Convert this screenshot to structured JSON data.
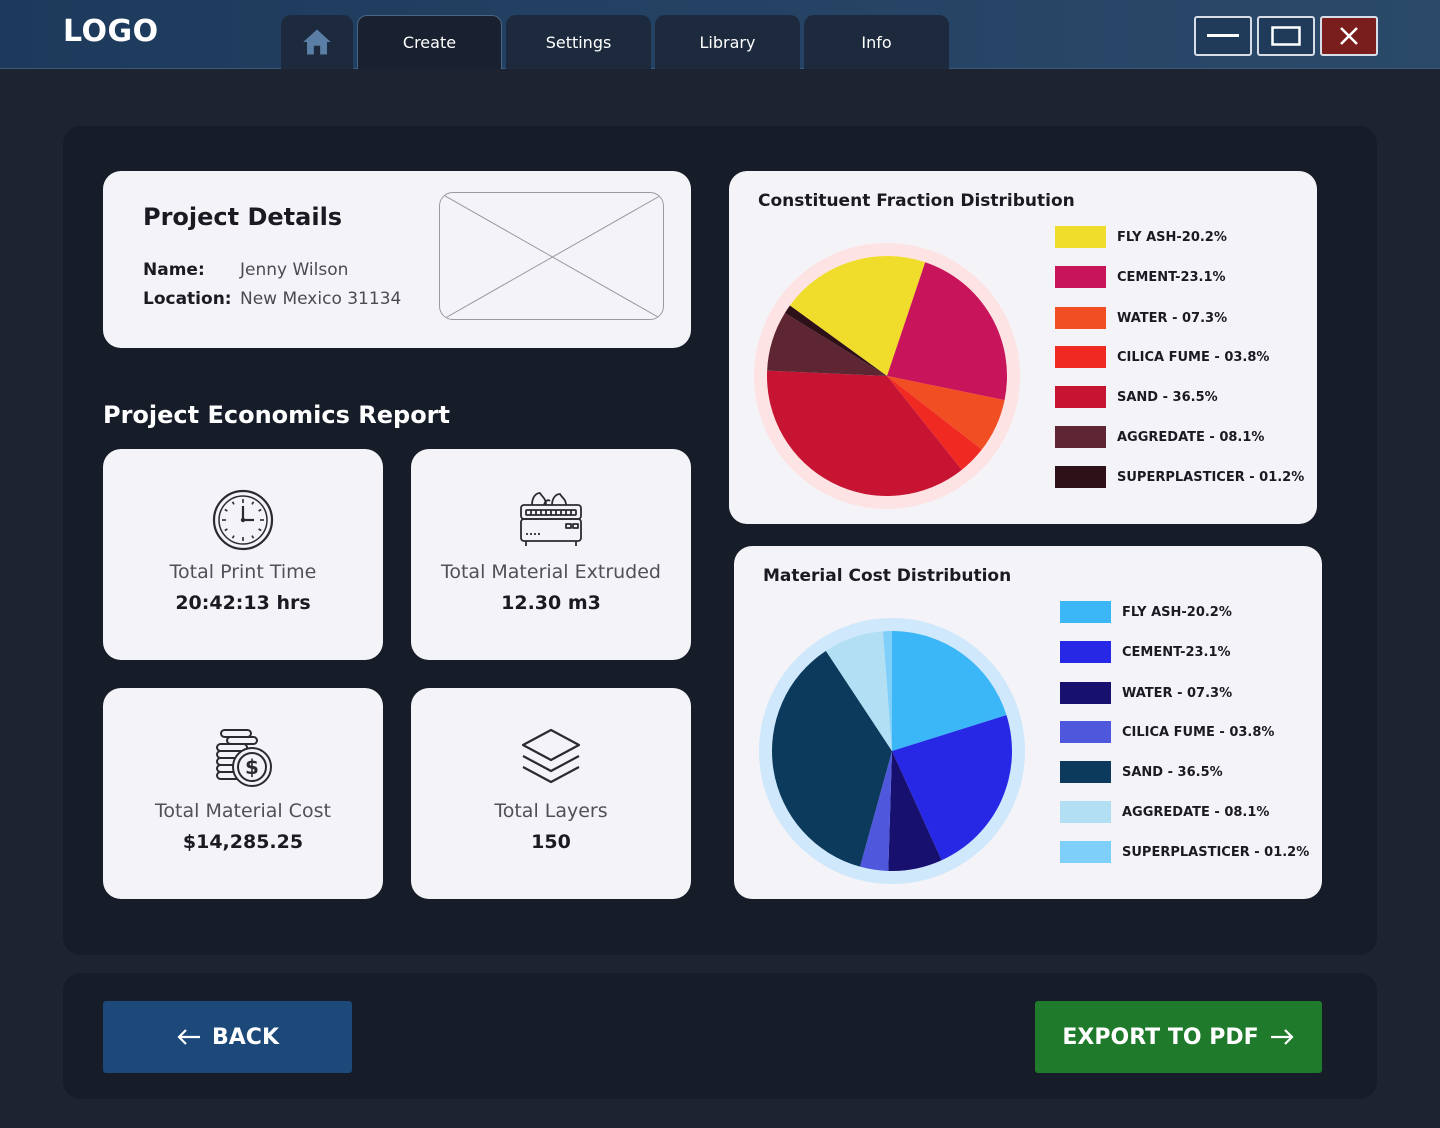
{
  "app": {
    "logo": "LOGO"
  },
  "tabs": [
    {
      "label": "",
      "icon": "home-icon"
    },
    {
      "label": "Create",
      "active": true
    },
    {
      "label": "Settings"
    },
    {
      "label": "Library"
    },
    {
      "label": "Info"
    }
  ],
  "window_controls": {
    "minimize_icon": "minimize-icon",
    "maximize_icon": "maximize-icon",
    "close_icon": "close-icon"
  },
  "project_details": {
    "title": "Project Details",
    "name_label": "Name:",
    "name_value": "Jenny Wilson",
    "location_label": "Location:",
    "location_value": "New Mexico 31134",
    "image_placeholder_icon": "image-placeholder-icon"
  },
  "economics": {
    "title": "Project Economics Report",
    "stats": [
      {
        "label": "Total Print Time",
        "value": "20:42:13 hrs",
        "icon": "clock-icon"
      },
      {
        "label": "Total Material Extruded",
        "value": "12.30 m3",
        "icon": "printer-icon"
      },
      {
        "label": "Total Material Cost",
        "value": "$14,285.25",
        "icon": "coins-icon"
      },
      {
        "label": "Total Layers",
        "value": "150",
        "icon": "layers-icon"
      }
    ]
  },
  "charts": {
    "constituent": {
      "title": "Constituent Fraction Distribution",
      "legend": [
        {
          "label": "FLY ASH-20.2%",
          "color": "#f0dd2b"
        },
        {
          "label": "CEMENT-23.1%",
          "color": "#c8145a"
        },
        {
          "label": "WATER - 07.3%",
          "color": "#f24e24"
        },
        {
          "label": "CILICA FUME - 03.8%",
          "color": "#f02a23"
        },
        {
          "label": "SAND - 36.5%",
          "color": "#c71432"
        },
        {
          "label": "AGGREDATE - 08.1%",
          "color": "#5e2533"
        },
        {
          "label": "SUPERPLASTICER - 01.2%",
          "color": "#2d1018"
        }
      ]
    },
    "cost": {
      "title": "Material Cost Distribution",
      "legend": [
        {
          "label": "FLY ASH-20.2%",
          "color": "#3bb6f6"
        },
        {
          "label": "CEMENT-23.1%",
          "color": "#2727e6"
        },
        {
          "label": "WATER - 07.3%",
          "color": "#17106e"
        },
        {
          "label": "CILICA FUME - 03.8%",
          "color": "#4f57dd"
        },
        {
          "label": "SAND - 36.5%",
          "color": "#0b3a5c"
        },
        {
          "label": "AGGREDATE - 08.1%",
          "color": "#b2dff4"
        },
        {
          "label": "SUPERPLASTICER - 01.2%",
          "color": "#7fcffb"
        }
      ]
    }
  },
  "chart_data": [
    {
      "type": "pie",
      "title": "Constituent Fraction Distribution",
      "categories": [
        "FLY ASH",
        "CEMENT",
        "WATER",
        "CILICA FUME",
        "SAND",
        "AGGREDATE",
        "SUPERPLASTICER"
      ],
      "values": [
        20.2,
        23.1,
        7.3,
        3.8,
        36.5,
        8.1,
        1.2
      ],
      "colors": [
        "#f0dd2b",
        "#c8145a",
        "#f24e24",
        "#f02a23",
        "#c71432",
        "#5e2533",
        "#2d1018"
      ],
      "legend_position": "right"
    },
    {
      "type": "pie",
      "title": "Material Cost Distribution",
      "categories": [
        "FLY ASH",
        "CEMENT",
        "WATER",
        "CILICA FUME",
        "SAND",
        "AGGREDATE",
        "SUPERPLASTICER"
      ],
      "values": [
        20.2,
        23.1,
        7.3,
        3.8,
        36.5,
        8.1,
        1.2
      ],
      "colors": [
        "#3bb6f6",
        "#2727e6",
        "#17106e",
        "#4f57dd",
        "#0b3a5c",
        "#b2dff4",
        "#7fcffb"
      ],
      "legend_position": "right"
    }
  ],
  "footer": {
    "back_label": "BACK",
    "back_icon": "arrow-left-icon",
    "export_label": "EXPORT TO PDF",
    "export_icon": "arrow-right-icon"
  }
}
